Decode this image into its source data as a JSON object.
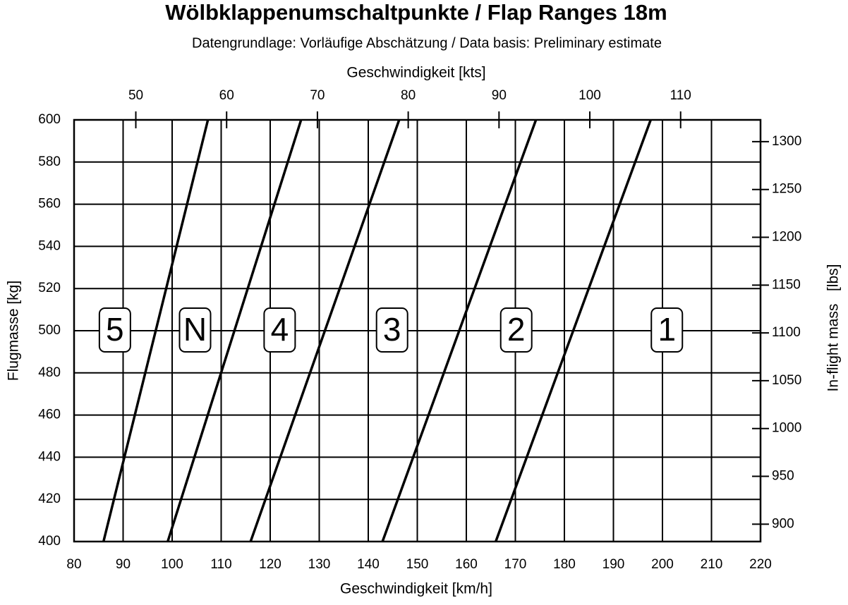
{
  "chart_data": {
    "type": "line",
    "title": "Wölbklappenumschaltpunkte / Flap Ranges 18m",
    "subtitle": "Datengrundlage: Vorläufige Abschätzung / Data basis: Preliminary estimate",
    "xlabel": "Geschwindigkeit [km/h]",
    "x2label": "Geschwindigkeit [kts]",
    "ylabel": "Flugmasse [kg]",
    "y2label": "In-flight mass   [lbs]",
    "xlim": [
      80,
      220
    ],
    "xticks": [
      80,
      90,
      100,
      110,
      120,
      130,
      140,
      150,
      160,
      170,
      180,
      190,
      200,
      210,
      220
    ],
    "ylim": [
      400,
      600
    ],
    "yticks": [
      400,
      420,
      440,
      460,
      480,
      500,
      520,
      540,
      560,
      580,
      600
    ],
    "x2lim": [
      43.2,
      118.8
    ],
    "x2ticks": [
      50,
      60,
      70,
      80,
      90,
      100,
      110
    ],
    "y2lim": [
      881.8,
      1322.8
    ],
    "y2ticks": [
      900,
      950,
      1000,
      1050,
      1100,
      1150,
      1200,
      1250,
      1300
    ],
    "grid": true,
    "color": "#000000",
    "series": [
      {
        "x": [
          86.0,
          107.3
        ],
        "values": [
          400,
          600
        ]
      },
      {
        "x": [
          99.1,
          126.3
        ],
        "values": [
          400,
          600
        ]
      },
      {
        "x": [
          116.0,
          146.3
        ],
        "values": [
          400,
          600
        ]
      },
      {
        "x": [
          142.9,
          174.2
        ],
        "values": [
          400,
          600
        ]
      },
      {
        "x": [
          166.0,
          197.6
        ],
        "values": [
          400,
          600
        ]
      }
    ],
    "regions": [
      "5",
      "N",
      "4",
      "3",
      "2",
      "1"
    ]
  }
}
